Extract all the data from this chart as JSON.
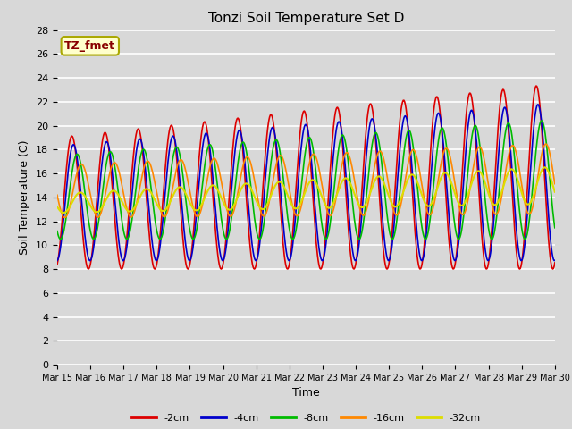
{
  "title": "Tonzi Soil Temperature Set D",
  "xlabel": "Time",
  "ylabel": "Soil Temperature (C)",
  "ylim": [
    0,
    28
  ],
  "yticks": [
    0,
    2,
    4,
    6,
    8,
    10,
    12,
    14,
    16,
    18,
    20,
    22,
    24,
    26,
    28
  ],
  "x_labels": [
    "Mar 15",
    "Mar 16",
    "Mar 17",
    "Mar 18",
    "Mar 19",
    "Mar 20",
    "Mar 21",
    "Mar 22",
    "Mar 23",
    "Mar 24",
    "Mar 25",
    "Mar 26",
    "Mar 27",
    "Mar 28",
    "Mar 29",
    "Mar 30"
  ],
  "legend_label_box": "TZ_fmet",
  "legend_box_facecolor": "#ffffcc",
  "legend_box_edgecolor": "#aaa800",
  "legend_box_textcolor": "#880000",
  "series": [
    {
      "label": "-2cm",
      "color": "#dd0000",
      "lw": 1.2
    },
    {
      "label": "-4cm",
      "color": "#0000cc",
      "lw": 1.2
    },
    {
      "label": "-8cm",
      "color": "#00bb00",
      "lw": 1.2
    },
    {
      "label": "-16cm",
      "color": "#ff8800",
      "lw": 1.2
    },
    {
      "label": "-32cm",
      "color": "#dddd00",
      "lw": 1.5
    }
  ],
  "plot_bg_color": "#d8d8d8",
  "grid_color": "#ffffff",
  "grid_lw": 1.2
}
